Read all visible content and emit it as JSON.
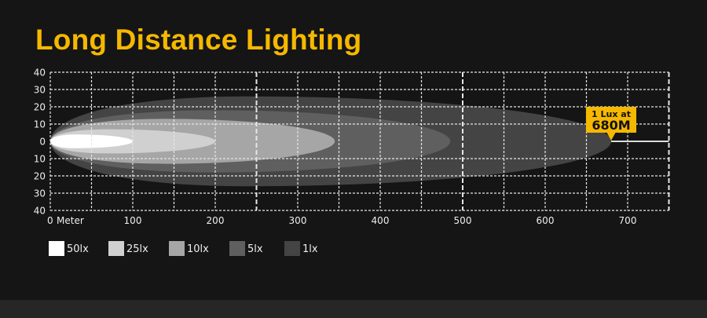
{
  "title": "Long Distance Lighting",
  "chart_data": {
    "type": "area",
    "title": "Long Distance Lighting",
    "xlabel": "Meter",
    "xlim": [
      0,
      750
    ],
    "ylim": [
      -40,
      40
    ],
    "x_ticks": [
      "0",
      "100",
      "200",
      "300",
      "400",
      "500",
      "600",
      "700"
    ],
    "x_unit_label": "Meter",
    "y_ticks": [
      "40",
      "30",
      "20",
      "10",
      "0",
      "10",
      "20",
      "30",
      "40"
    ],
    "grid": true,
    "legend_position": "bottom-left",
    "series": [
      {
        "name": "1lx",
        "reach": 680,
        "half_width": 26,
        "peak_at": 240,
        "color": "#444444"
      },
      {
        "name": "5lx",
        "reach": 485,
        "half_width": 18,
        "peak_at": 200,
        "color": "#5f5f5f"
      },
      {
        "name": "10lx",
        "reach": 345,
        "half_width": 13,
        "peak_at": 140,
        "color": "#a6a6a6"
      },
      {
        "name": "25lx",
        "reach": 200,
        "half_width": 7,
        "peak_at": 70,
        "color": "#d0d0d0"
      },
      {
        "name": "50lx",
        "reach": 100,
        "half_width": 4,
        "peak_at": 30,
        "color": "#ffffff"
      }
    ],
    "legend": [
      "50lx",
      "25lx",
      "10lx",
      "5lx",
      "1lx"
    ],
    "annotation": {
      "line1": "1 Lux at",
      "line2": "680M",
      "at": 680,
      "color": "#f5b800"
    }
  }
}
